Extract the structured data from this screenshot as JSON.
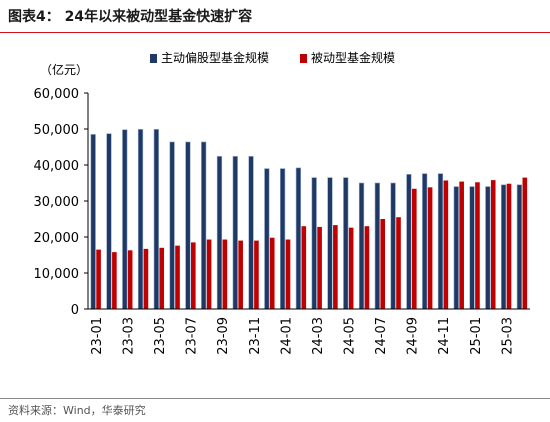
{
  "header": {
    "title": "图表4： 24年以来被动型基金快速扩容"
  },
  "footer": {
    "source": "资料来源：Wind，华泰研究"
  },
  "colors": {
    "active": "#1f3864",
    "passive": "#c00000",
    "rule": "#d40f1c"
  },
  "chart_data": {
    "type": "bar",
    "unit_label": "（亿元）",
    "ylim": [
      0,
      60000
    ],
    "yticks": [
      0,
      10000,
      20000,
      30000,
      40000,
      50000,
      60000
    ],
    "ytick_labels": [
      "0",
      "10,000",
      "20,000",
      "30,000",
      "40,000",
      "50,000",
      "60,000"
    ],
    "grid": false,
    "legend_position": "top",
    "categories": [
      "23-01",
      "23-02",
      "23-03",
      "23-04",
      "23-05",
      "23-06",
      "23-07",
      "23-08",
      "23-09",
      "23-10",
      "23-11",
      "23-12",
      "24-01",
      "24-02",
      "24-03",
      "24-04",
      "24-05",
      "24-06",
      "24-07",
      "24-08",
      "24-09",
      "24-10",
      "24-11",
      "24-12",
      "25-01",
      "25-02",
      "25-03",
      "25-04"
    ],
    "xtick_labels": [
      "23-01",
      "23-03",
      "23-05",
      "23-07",
      "23-09",
      "23-11",
      "24-01",
      "24-03",
      "24-05",
      "24-07",
      "24-09",
      "24-11",
      "25-01",
      "25-03"
    ],
    "series": [
      {
        "name": "主动偏股型基金规模",
        "values": [
          48500,
          48700,
          49800,
          49900,
          49900,
          46400,
          46400,
          46400,
          42400,
          42400,
          42400,
          39000,
          39000,
          39200,
          36500,
          36500,
          36500,
          35000,
          35000,
          35000,
          37400,
          37600,
          37600,
          34000,
          34000,
          34000,
          34500,
          34500
        ]
      },
      {
        "name": "被动型基金规模",
        "values": [
          16500,
          15800,
          16300,
          16700,
          17000,
          17600,
          18500,
          19300,
          19300,
          19000,
          19000,
          19800,
          19300,
          23000,
          22800,
          23300,
          22600,
          23000,
          25000,
          25500,
          33400,
          33800,
          35700,
          35400,
          35200,
          35800,
          34800,
          36500
        ]
      }
    ]
  }
}
